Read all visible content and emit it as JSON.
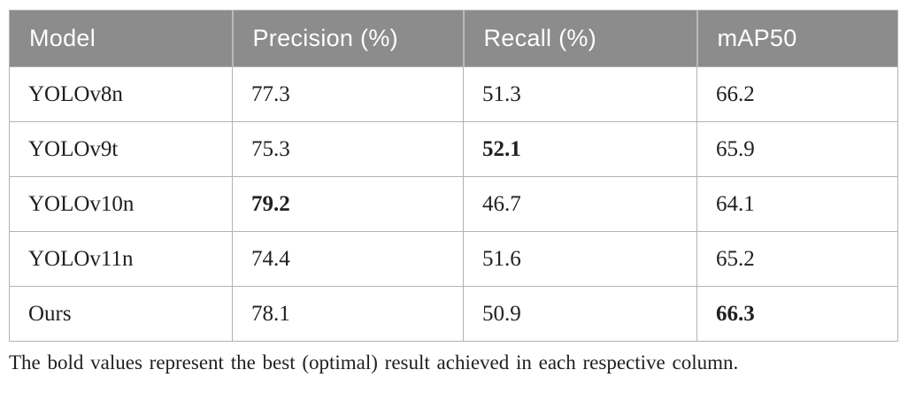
{
  "table": {
    "columns": [
      {
        "label": "Model"
      },
      {
        "label": "Precision (%)"
      },
      {
        "label": "Recall (%)"
      },
      {
        "label": "mAP50"
      }
    ],
    "rows": [
      {
        "model": "YOLOv8n",
        "precision": "77.3",
        "recall": "51.3",
        "map50": "66.2",
        "bold": []
      },
      {
        "model": "YOLOv9t",
        "precision": "75.3",
        "recall": "52.1",
        "map50": "65.9",
        "bold": [
          "recall"
        ]
      },
      {
        "model": "YOLOv10n",
        "precision": "79.2",
        "recall": "46.7",
        "map50": "64.1",
        "bold": [
          "precision"
        ]
      },
      {
        "model": "YOLOv11n",
        "precision": "74.4",
        "recall": "51.6",
        "map50": "65.2",
        "bold": []
      },
      {
        "model": "Ours",
        "precision": "78.1",
        "recall": "50.9",
        "map50": "66.3",
        "bold": [
          "map50"
        ]
      }
    ],
    "footnote": "The bold values represent the best (optimal) result achieved in each respective column."
  },
  "colors": {
    "header_bg": "#8c8c8c",
    "header_text": "#ffffff",
    "header_divider": "#b9b9b9",
    "body_text": "#1f1f1f",
    "border": "#b3b3b3"
  }
}
